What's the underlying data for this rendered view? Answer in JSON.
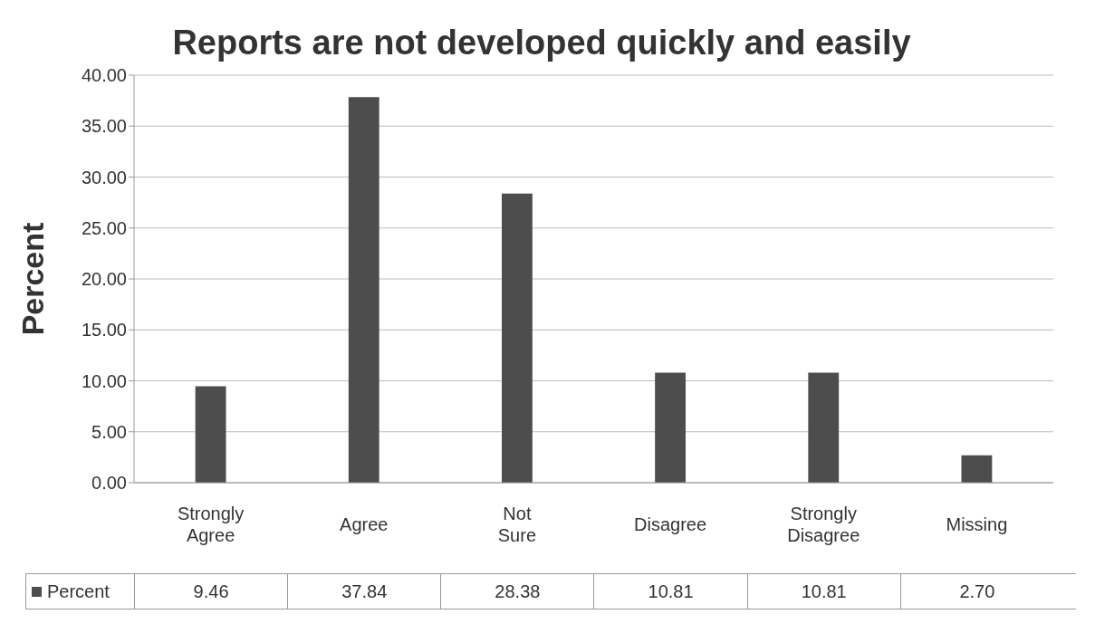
{
  "chart_data": {
    "type": "bar",
    "title": "Reports are not developed quickly and easily",
    "ylabel": "Percent",
    "categories": [
      "Strongly Agree",
      "Agree",
      "Not Sure",
      "Disagree",
      "Strongly Disagree",
      "Missing"
    ],
    "series": [
      {
        "name": "Percent",
        "color": "#4d4d4d",
        "values": [
          9.46,
          37.84,
          28.38,
          10.81,
          10.81,
          2.7
        ],
        "value_labels": [
          "9.46",
          "37.84",
          "28.38",
          "10.81",
          "10.81",
          "2.70"
        ]
      }
    ],
    "ylim": [
      0,
      40
    ],
    "yticks": [
      {
        "value": 0,
        "label": "0.00"
      },
      {
        "value": 5,
        "label": "5.00"
      },
      {
        "value": 10,
        "label": "10.00"
      },
      {
        "value": 15,
        "label": "15.00"
      },
      {
        "value": 20,
        "label": "20.00"
      },
      {
        "value": 25,
        "label": "25.00"
      },
      {
        "value": 30,
        "label": "30.00"
      },
      {
        "value": 35,
        "label": "35.00"
      },
      {
        "value": 40,
        "label": "40.00"
      }
    ],
    "grid": "y",
    "legend": "bottom"
  }
}
